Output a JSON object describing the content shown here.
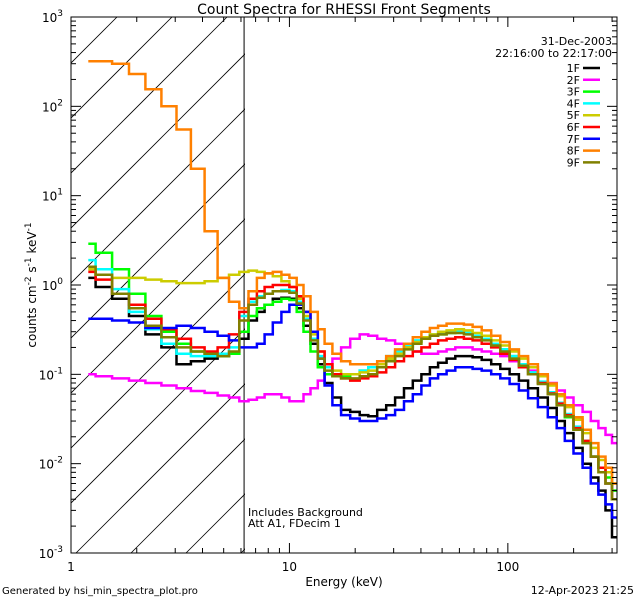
{
  "chart_data": {
    "type": "line",
    "title": "Count Spectra for RHESSI Front Segments",
    "xlabel": "Energy (keV)",
    "ylabel": "counts cm^-2 s^-1 keV^-1",
    "ylabel_parts": {
      "base": "counts cm",
      "e1": "-2",
      "mid": " s",
      "e2": "-1",
      "end": " keV",
      "e3": "-1"
    },
    "xscale": "log",
    "yscale": "log",
    "xlim": [
      1,
      316
    ],
    "ylim": [
      0.001,
      1000
    ],
    "x_ticks": [
      {
        "value": 1,
        "label": "1"
      },
      {
        "value": 10,
        "label": "10"
      },
      {
        "value": 100,
        "label": "100"
      }
    ],
    "y_ticks": [
      {
        "value": 0.001,
        "base": "10",
        "exp": "-3"
      },
      {
        "value": 0.01,
        "base": "10",
        "exp": "-2"
      },
      {
        "value": 0.1,
        "base": "10",
        "exp": "-1"
      },
      {
        "value": 1,
        "base": "10",
        "exp": "0"
      },
      {
        "value": 10,
        "base": "10",
        "exp": "1"
      },
      {
        "value": 100,
        "base": "10",
        "exp": "2"
      },
      {
        "value": 1000,
        "base": "10",
        "exp": "3"
      }
    ],
    "excluded_region": {
      "xmin": 1,
      "xmax": 6.2,
      "style": "hatched"
    },
    "date": "31-Dec-2003",
    "time_range": "22:16:00 to 22:17:00",
    "annotations": [
      "Includes Background",
      "Att A1, FDecim 1"
    ],
    "legend_position": "top-right",
    "energy": [
      1.2,
      1.4,
      1.7,
      2.0,
      2.4,
      2.8,
      3.3,
      3.8,
      4.4,
      5.0,
      5.6,
      6.2,
      6.8,
      7.4,
      8.0,
      8.8,
      9.6,
      10.4,
      11.2,
      12.0,
      13.0,
      14.0,
      15.0,
      16.5,
      18.0,
      20.0,
      22.0,
      24.0,
      26.5,
      29.0,
      32.0,
      35.0,
      38.5,
      42.0,
      46.0,
      50.0,
      55.0,
      60.0,
      66.0,
      72.0,
      80.0,
      88.0,
      97.0,
      107.0,
      118.0,
      130.0,
      145.0,
      160.0,
      175.0,
      190.0,
      210.0,
      230.0,
      250.0,
      270.0,
      290.0,
      310.0
    ],
    "series": [
      {
        "name": "1F",
        "color": "#000000",
        "values": [
          1.2,
          0.95,
          0.7,
          0.45,
          0.28,
          0.2,
          0.13,
          0.14,
          0.15,
          0.16,
          0.17,
          0.25,
          0.4,
          0.5,
          0.6,
          0.7,
          0.72,
          0.7,
          0.55,
          0.35,
          0.22,
          0.13,
          0.08,
          0.055,
          0.04,
          0.038,
          0.035,
          0.034,
          0.04,
          0.045,
          0.055,
          0.07,
          0.085,
          0.1,
          0.12,
          0.135,
          0.15,
          0.16,
          0.16,
          0.155,
          0.145,
          0.13,
          0.115,
          0.1,
          0.085,
          0.07,
          0.055,
          0.042,
          0.03,
          0.022,
          0.015,
          0.01,
          0.007,
          0.005,
          0.003,
          0.0015
        ]
      },
      {
        "name": "2F",
        "color": "#ff00ff",
        "values": [
          0.1,
          0.095,
          0.09,
          0.085,
          0.08,
          0.075,
          0.07,
          0.065,
          0.062,
          0.058,
          0.055,
          0.05,
          0.052,
          0.055,
          0.06,
          0.06,
          0.055,
          0.05,
          0.05,
          0.06,
          0.07,
          0.085,
          0.1,
          0.15,
          0.2,
          0.25,
          0.28,
          0.27,
          0.25,
          0.24,
          0.22,
          0.2,
          0.18,
          0.17,
          0.17,
          0.18,
          0.19,
          0.2,
          0.2,
          0.19,
          0.18,
          0.17,
          0.16,
          0.14,
          0.13,
          0.11,
          0.095,
          0.08,
          0.066,
          0.055,
          0.045,
          0.038,
          0.03,
          0.025,
          0.021,
          0.017
        ]
      },
      {
        "name": "3F",
        "color": "#00ff00",
        "values": [
          2.9,
          2.3,
          1.5,
          0.8,
          0.45,
          0.3,
          0.22,
          0.18,
          0.16,
          0.16,
          0.17,
          0.3,
          0.45,
          0.55,
          0.6,
          0.65,
          0.7,
          0.68,
          0.5,
          0.3,
          0.18,
          0.12,
          0.1,
          0.095,
          0.095,
          0.1,
          0.11,
          0.12,
          0.13,
          0.15,
          0.17,
          0.2,
          0.23,
          0.25,
          0.27,
          0.28,
          0.29,
          0.3,
          0.29,
          0.27,
          0.25,
          0.22,
          0.19,
          0.16,
          0.13,
          0.1,
          0.08,
          0.06,
          0.045,
          0.033,
          0.024,
          0.017,
          0.012,
          0.009,
          0.007,
          0.005
        ]
      },
      {
        "name": "4F",
        "color": "#00ffff",
        "values": [
          1.9,
          1.5,
          0.9,
          0.5,
          0.32,
          0.22,
          0.17,
          0.16,
          0.16,
          0.17,
          0.2,
          0.45,
          0.65,
          0.75,
          0.8,
          0.85,
          0.88,
          0.85,
          0.65,
          0.42,
          0.25,
          0.16,
          0.12,
          0.1,
          0.1,
          0.1,
          0.11,
          0.12,
          0.14,
          0.16,
          0.18,
          0.21,
          0.24,
          0.26,
          0.28,
          0.29,
          0.3,
          0.3,
          0.29,
          0.27,
          0.25,
          0.22,
          0.19,
          0.16,
          0.13,
          0.105,
          0.083,
          0.063,
          0.048,
          0.036,
          0.026,
          0.018,
          0.012,
          0.009,
          0.006,
          0.004
        ]
      },
      {
        "name": "5F",
        "color": "#cccc00",
        "values": [
          1.5,
          1.3,
          1.2,
          1.2,
          1.15,
          1.1,
          1.05,
          1.05,
          1.1,
          1.2,
          1.3,
          1.4,
          1.45,
          1.4,
          1.35,
          1.25,
          1.1,
          0.95,
          0.7,
          0.45,
          0.28,
          0.18,
          0.13,
          0.11,
          0.1,
          0.1,
          0.105,
          0.11,
          0.13,
          0.15,
          0.17,
          0.2,
          0.23,
          0.26,
          0.28,
          0.3,
          0.31,
          0.32,
          0.31,
          0.29,
          0.27,
          0.24,
          0.21,
          0.18,
          0.15,
          0.12,
          0.095,
          0.075,
          0.057,
          0.043,
          0.031,
          0.022,
          0.015,
          0.011,
          0.008,
          0.006
        ]
      },
      {
        "name": "6F",
        "color": "#ff0000",
        "values": [
          1.4,
          1.15,
          0.8,
          0.6,
          0.42,
          0.32,
          0.25,
          0.2,
          0.18,
          0.2,
          0.28,
          0.5,
          0.7,
          0.85,
          0.95,
          1.0,
          1.0,
          0.95,
          0.75,
          0.5,
          0.3,
          0.18,
          0.13,
          0.1,
          0.09,
          0.085,
          0.09,
          0.095,
          0.105,
          0.12,
          0.14,
          0.16,
          0.18,
          0.2,
          0.22,
          0.24,
          0.25,
          0.26,
          0.25,
          0.24,
          0.22,
          0.2,
          0.17,
          0.145,
          0.12,
          0.1,
          0.08,
          0.061,
          0.047,
          0.035,
          0.025,
          0.018,
          0.012,
          0.009,
          0.006,
          0.004
        ]
      },
      {
        "name": "7F",
        "color": "#0000ff",
        "values": [
          0.42,
          0.42,
          0.4,
          0.38,
          0.33,
          0.33,
          0.35,
          0.33,
          0.3,
          0.27,
          0.24,
          0.2,
          0.2,
          0.22,
          0.28,
          0.38,
          0.5,
          0.6,
          0.6,
          0.5,
          0.3,
          0.15,
          0.075,
          0.045,
          0.035,
          0.032,
          0.03,
          0.03,
          0.032,
          0.035,
          0.04,
          0.05,
          0.06,
          0.075,
          0.09,
          0.1,
          0.11,
          0.12,
          0.12,
          0.115,
          0.11,
          0.1,
          0.09,
          0.078,
          0.066,
          0.054,
          0.043,
          0.033,
          0.025,
          0.018,
          0.013,
          0.009,
          0.006,
          0.0045,
          0.0035,
          0.0025
        ]
      },
      {
        "name": "8F",
        "color": "#ff8000",
        "values": [
          320,
          320,
          300,
          230,
          155,
          100,
          55,
          20,
          4.0,
          1.2,
          0.65,
          0.55,
          0.85,
          1.2,
          1.35,
          1.4,
          1.3,
          1.2,
          1.0,
          0.75,
          0.5,
          0.32,
          0.22,
          0.17,
          0.14,
          0.13,
          0.13,
          0.13,
          0.14,
          0.16,
          0.19,
          0.22,
          0.26,
          0.3,
          0.33,
          0.35,
          0.37,
          0.37,
          0.36,
          0.34,
          0.31,
          0.27,
          0.23,
          0.19,
          0.16,
          0.13,
          0.1,
          0.079,
          0.06,
          0.045,
          0.033,
          0.024,
          0.017,
          0.012,
          0.009,
          0.006
        ]
      },
      {
        "name": "9F",
        "color": "#808000",
        "values": [
          1.6,
          1.3,
          0.8,
          0.55,
          0.35,
          0.26,
          0.2,
          0.18,
          0.17,
          0.16,
          0.18,
          0.4,
          0.6,
          0.72,
          0.8,
          0.85,
          0.85,
          0.82,
          0.62,
          0.4,
          0.24,
          0.15,
          0.11,
          0.095,
          0.09,
          0.09,
          0.095,
          0.1,
          0.12,
          0.14,
          0.16,
          0.19,
          0.22,
          0.25,
          0.27,
          0.28,
          0.29,
          0.29,
          0.28,
          0.26,
          0.24,
          0.21,
          0.18,
          0.15,
          0.125,
          0.1,
          0.078,
          0.06,
          0.045,
          0.034,
          0.024,
          0.017,
          0.012,
          0.008,
          0.006,
          0.004
        ]
      }
    ]
  },
  "footer": {
    "generated_by": "Generated by hsi_min_spectra_plot.pro",
    "timestamp": "12-Apr-2023 21:25"
  }
}
